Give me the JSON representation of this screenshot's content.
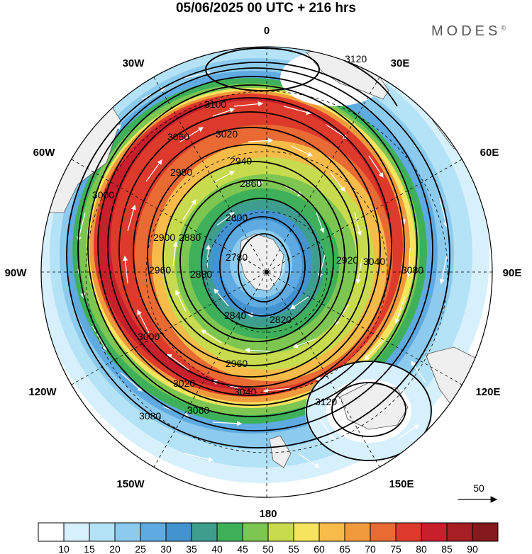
{
  "header": {
    "title": "05/06/2025  00 UTC  + 216 hrs",
    "brand": "MODES",
    "brand_mark": "©"
  },
  "map": {
    "projection": "south-polar-stereographic",
    "longitude_labels": [
      "0",
      "30E",
      "60E",
      "90E",
      "120E",
      "150E",
      "180",
      "150W",
      "120W",
      "90W",
      "60W",
      "30W"
    ],
    "contour_labels": [
      "3120",
      "3100",
      "3060",
      "3020",
      "2980",
      "2940",
      "2900",
      "2860",
      "2800",
      "2780",
      "2820",
      "2840",
      "2880",
      "2920",
      "2960",
      "3000",
      "3040",
      "3080",
      "3120",
      "3080",
      "3060",
      "3040",
      "3020",
      "3000",
      "2960",
      "2880"
    ],
    "pole_marker": "South Pole"
  },
  "vector_legend": {
    "value": "50"
  },
  "colorbar": {
    "ticks": [
      "10",
      "15",
      "20",
      "25",
      "30",
      "35",
      "40",
      "45",
      "50",
      "55",
      "60",
      "65",
      "70",
      "75",
      "80",
      "85",
      "90"
    ],
    "colors": [
      "#ffffff",
      "#d6f0fc",
      "#b4e2f6",
      "#8ccbee",
      "#5fabe1",
      "#4393d0",
      "#3e9e8e",
      "#3fb05a",
      "#7dc651",
      "#c7db4e",
      "#f7e45e",
      "#f6bb48",
      "#f19a3c",
      "#ea6a34",
      "#de3a2c",
      "#c71f2c",
      "#a51f25",
      "#86191c"
    ]
  }
}
